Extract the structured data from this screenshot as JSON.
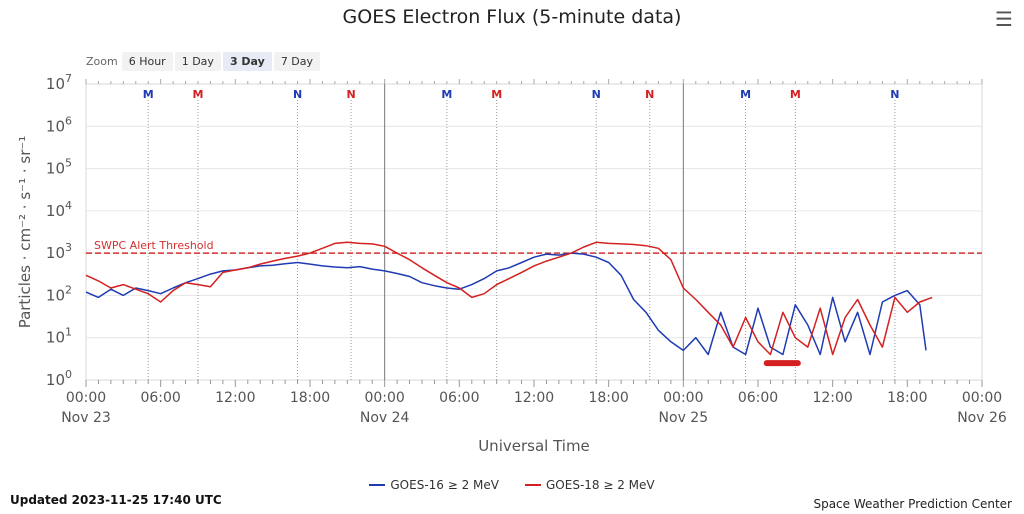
{
  "title": "GOES Electron Flux (5-minute data)",
  "zoom": {
    "label": "Zoom",
    "buttons": [
      "6 Hour",
      "1 Day",
      "3 Day",
      "7 Day"
    ],
    "active": "3 Day"
  },
  "updated": "Updated 2023-11-25 17:40 UTC",
  "credit": "Space Weather Prediction Center",
  "colors": {
    "goes16": "#1f3bb3",
    "goes18": "#d42020",
    "threshold": "#d43030",
    "grid": "#e6e6e6"
  },
  "chart_data": {
    "type": "line",
    "title": "GOES Electron Flux (5-minute data)",
    "xlabel": "Universal Time",
    "ylabel": "Particles · cm⁻² · s⁻¹ · sr⁻¹",
    "xlim_hours": [
      0,
      72
    ],
    "ylim_log10": [
      0,
      7
    ],
    "y_scale": "log",
    "y_ticks": [
      {
        "exp": 0,
        "base": "10",
        "sup": "0"
      },
      {
        "exp": 1,
        "base": "10",
        "sup": "1"
      },
      {
        "exp": 2,
        "base": "10",
        "sup": "2"
      },
      {
        "exp": 3,
        "base": "10",
        "sup": "3"
      },
      {
        "exp": 4,
        "base": "10",
        "sup": "4"
      },
      {
        "exp": 5,
        "base": "10",
        "sup": "5"
      },
      {
        "exp": 6,
        "base": "10",
        "sup": "6"
      },
      {
        "exp": 7,
        "base": "10",
        "sup": "7"
      }
    ],
    "x_ticks": [
      {
        "h": 0,
        "time": "00:00",
        "date": "Nov 23"
      },
      {
        "h": 6,
        "time": "06:00",
        "date": ""
      },
      {
        "h": 12,
        "time": "12:00",
        "date": ""
      },
      {
        "h": 18,
        "time": "18:00",
        "date": ""
      },
      {
        "h": 24,
        "time": "00:00",
        "date": "Nov 24"
      },
      {
        "h": 30,
        "time": "06:00",
        "date": ""
      },
      {
        "h": 36,
        "time": "12:00",
        "date": ""
      },
      {
        "h": 42,
        "time": "18:00",
        "date": ""
      },
      {
        "h": 48,
        "time": "00:00",
        "date": "Nov 25"
      },
      {
        "h": 54,
        "time": "06:00",
        "date": ""
      },
      {
        "h": 60,
        "time": "12:00",
        "date": ""
      },
      {
        "h": 66,
        "time": "18:00",
        "date": ""
      },
      {
        "h": 72,
        "time": "00:00",
        "date": "Nov 26"
      }
    ],
    "day_boundaries": [
      24,
      48
    ],
    "threshold": {
      "label": "SWPC Alert Threshold",
      "value": 1000
    },
    "markers": [
      {
        "h": 5.0,
        "letter": "M",
        "sat": "GOES-16"
      },
      {
        "h": 9.0,
        "letter": "M",
        "sat": "GOES-18"
      },
      {
        "h": 17.0,
        "letter": "N",
        "sat": "GOES-16"
      },
      {
        "h": 21.3,
        "letter": "N",
        "sat": "GOES-18"
      },
      {
        "h": 29.0,
        "letter": "M",
        "sat": "GOES-16"
      },
      {
        "h": 33.0,
        "letter": "M",
        "sat": "GOES-18"
      },
      {
        "h": 41.0,
        "letter": "N",
        "sat": "GOES-16"
      },
      {
        "h": 45.3,
        "letter": "N",
        "sat": "GOES-18"
      },
      {
        "h": 53.0,
        "letter": "M",
        "sat": "GOES-16"
      },
      {
        "h": 57.0,
        "letter": "M",
        "sat": "GOES-18"
      },
      {
        "h": 65.0,
        "letter": "N",
        "sat": "GOES-16"
      }
    ],
    "eclipse_bar": {
      "start_h": 54.7,
      "end_h": 57.2,
      "value": 2.5
    },
    "series": [
      {
        "name": "GOES-16 ≥ 2 MeV",
        "x_hours": [
          0,
          1,
          2,
          3,
          4,
          5,
          6,
          7,
          8,
          9,
          10,
          11,
          12,
          13,
          14,
          15,
          16,
          17,
          18,
          19,
          20,
          21,
          22,
          23,
          24,
          25,
          26,
          27,
          28,
          29,
          30,
          31,
          32,
          33,
          34,
          35,
          36,
          37,
          38,
          39,
          40,
          41,
          42,
          43,
          44,
          45,
          46,
          47,
          48,
          49,
          50,
          51,
          52,
          53,
          54,
          55,
          56,
          57,
          58,
          59,
          60,
          61,
          62,
          63,
          64,
          65,
          66,
          67,
          67.5
        ],
        "values": [
          120,
          90,
          140,
          100,
          150,
          130,
          110,
          150,
          200,
          250,
          320,
          380,
          400,
          450,
          500,
          520,
          560,
          600,
          550,
          500,
          470,
          450,
          480,
          420,
          380,
          330,
          280,
          200,
          170,
          150,
          140,
          180,
          250,
          380,
          450,
          600,
          800,
          950,
          900,
          1000,
          950,
          800,
          600,
          300,
          80,
          40,
          15,
          8,
          5,
          10,
          4,
          40,
          6,
          4,
          50,
          6,
          4,
          60,
          20,
          4,
          90,
          8,
          40,
          4,
          70,
          100,
          130,
          60,
          5
        ]
      },
      {
        "name": "GOES-18 ≥ 2 MeV",
        "x_hours": [
          0,
          1,
          2,
          3,
          4,
          5,
          6,
          7,
          8,
          9,
          10,
          11,
          12,
          13,
          14,
          15,
          16,
          17,
          18,
          19,
          20,
          21,
          22,
          23,
          24,
          25,
          26,
          27,
          28,
          29,
          30,
          31,
          32,
          33,
          34,
          35,
          36,
          37,
          38,
          39,
          40,
          41,
          42,
          43,
          44,
          45,
          46,
          47,
          48,
          49,
          50,
          51,
          52,
          53,
          54,
          55,
          56,
          57,
          58,
          59,
          60,
          61,
          62,
          63,
          64,
          65,
          66,
          67,
          68
        ],
        "values": [
          300,
          220,
          150,
          180,
          140,
          110,
          70,
          130,
          200,
          180,
          160,
          350,
          400,
          450,
          550,
          650,
          750,
          850,
          1000,
          1300,
          1700,
          1800,
          1700,
          1650,
          1450,
          1000,
          700,
          450,
          300,
          200,
          150,
          90,
          110,
          180,
          250,
          350,
          500,
          650,
          800,
          1000,
          1400,
          1800,
          1700,
          1650,
          1600,
          1500,
          1300,
          700,
          150,
          80,
          40,
          20,
          6,
          30,
          8,
          4,
          40,
          10,
          6,
          50,
          4,
          30,
          80,
          20,
          6,
          90,
          40,
          70,
          90
        ]
      }
    ]
  }
}
